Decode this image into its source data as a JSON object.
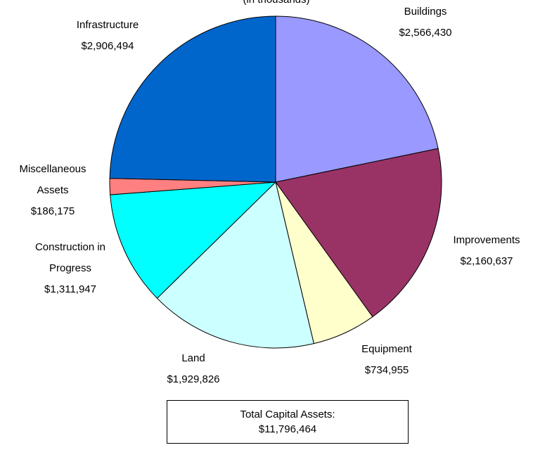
{
  "chart_data": {
    "type": "pie",
    "subtitle": "(in thousands)",
    "categories": [
      "Buildings",
      "Improvements",
      "Equipment",
      "Land",
      "Construction in Progress",
      "Miscellaneous Assets",
      "Infrastructure"
    ],
    "values": [
      2566430,
      2160637,
      734955,
      1929826,
      1311947,
      186175,
      2906494
    ],
    "value_labels": [
      "$2,566,430",
      "$2,160,637",
      "$734,955",
      "$1,929,826",
      "$1,311,947",
      "$186,175",
      "$2,906,494"
    ],
    "colors": [
      "#9999ff",
      "#993366",
      "#ffffcc",
      "#ccffff",
      "#00ffff",
      "#ff8080",
      "#0066cc"
    ],
    "total_title": "Total Capital Assets:",
    "total": 11796464,
    "total_label": "$11,796,464"
  }
}
